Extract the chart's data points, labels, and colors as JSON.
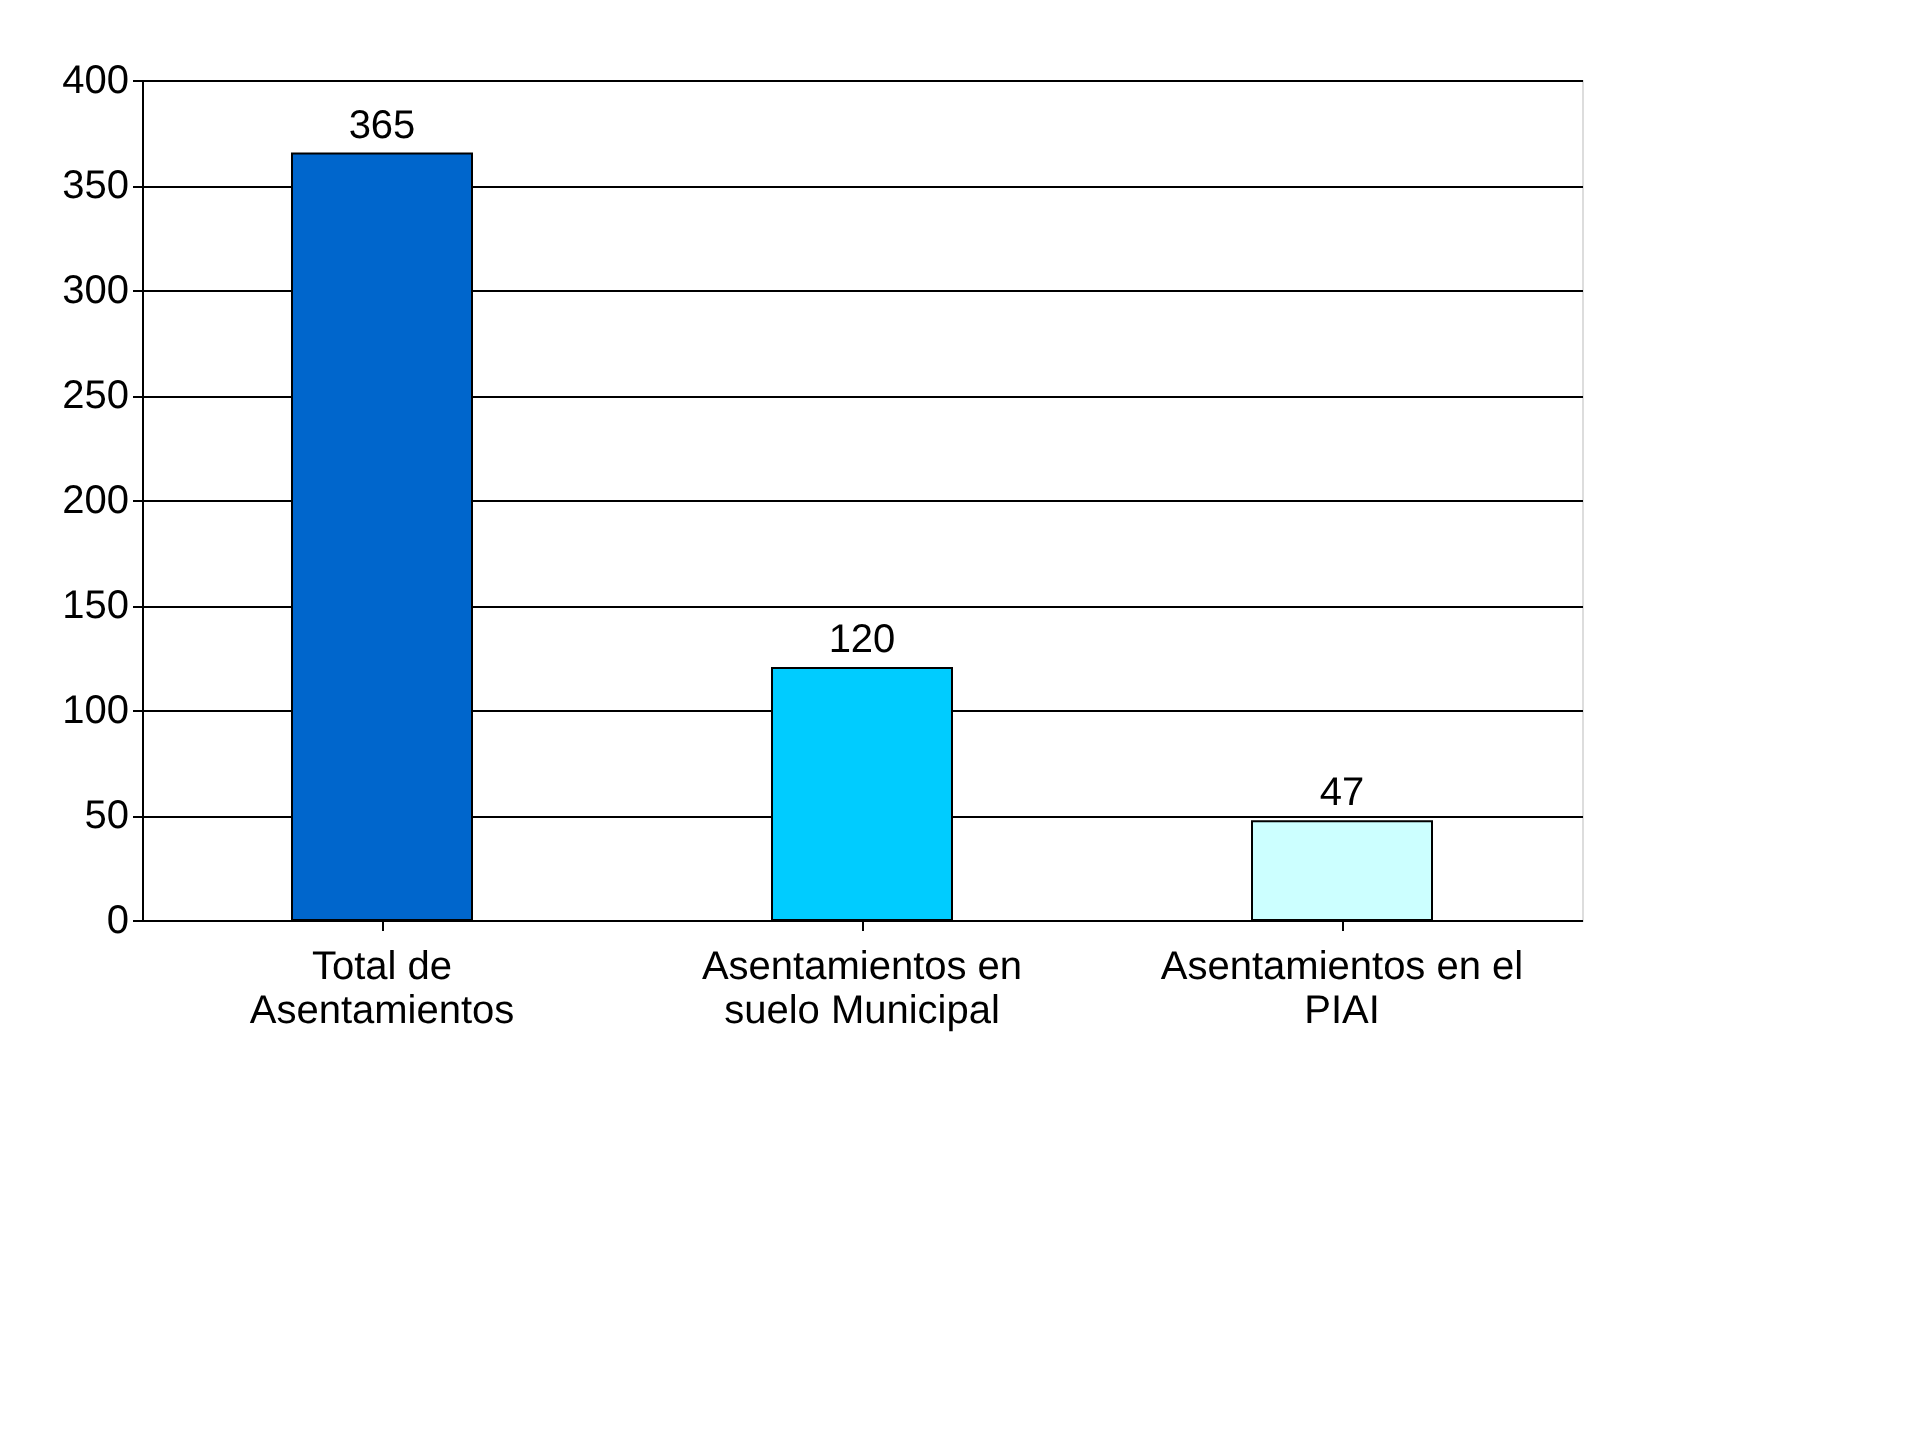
{
  "chart_data": {
    "type": "bar",
    "categories": [
      "Total de Asentamientos",
      "Asentamientos en suelo Municipal",
      "Asentamientos en el PIAI"
    ],
    "values": [
      365,
      120,
      47
    ],
    "colors": [
      "#0066cc",
      "#00ccff",
      "#ccffff"
    ],
    "ylim": [
      0,
      400
    ],
    "yticks": [
      0,
      50,
      100,
      150,
      200,
      250,
      300,
      350,
      400
    ],
    "grid": "y",
    "data_labels": true
  }
}
